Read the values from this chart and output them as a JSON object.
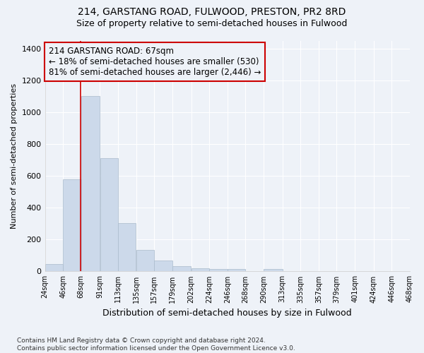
{
  "title1": "214, GARSTANG ROAD, FULWOOD, PRESTON, PR2 8RD",
  "title2": "Size of property relative to semi-detached houses in Fulwood",
  "xlabel": "Distribution of semi-detached houses by size in Fulwood",
  "ylabel": "Number of semi-detached properties",
  "footnote": "Contains HM Land Registry data © Crown copyright and database right 2024.\nContains public sector information licensed under the Open Government Licence v3.0.",
  "bar_color": "#ccd9ea",
  "bar_edge_color": "#aabbcc",
  "property_line_color": "#cc0000",
  "annotation_box_edge_color": "#cc0000",
  "annotation_line1": "214 GARSTANG ROAD: 67sqm",
  "annotation_line2": "← 18% of semi-detached houses are smaller (530)",
  "annotation_line3": "81% of semi-detached houses are larger (2,446) →",
  "property_size": 67,
  "bins": [
    24,
    46,
    68,
    91,
    113,
    135,
    157,
    179,
    202,
    224,
    246,
    268,
    290,
    313,
    335,
    357,
    379,
    401,
    424,
    446,
    468
  ],
  "counts": [
    46,
    578,
    1100,
    710,
    305,
    133,
    70,
    35,
    21,
    14,
    14,
    0,
    14,
    0,
    0,
    0,
    0,
    0,
    0,
    0
  ],
  "ylim": [
    0,
    1450
  ],
  "yticks": [
    0,
    200,
    400,
    600,
    800,
    1000,
    1200,
    1400
  ],
  "background_color": "#eef2f8",
  "grid_color": "#ffffff"
}
